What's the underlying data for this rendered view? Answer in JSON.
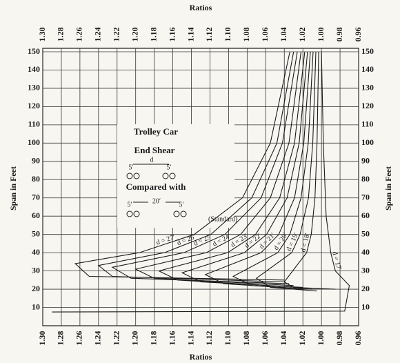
{
  "chart_data": {
    "type": "line",
    "x_label": "Ratios",
    "y_label": "Span in Feet",
    "annotations": [
      "Trolley Car",
      "End Shear",
      "Compared with",
      "(Standard)",
      "d",
      "5′",
      "5′",
      "5′",
      "20′",
      "5′"
    ],
    "color": "#1a1a1a",
    "grid": true,
    "xlim": [
      1.3,
      0.96
    ],
    "xticks": [
      {
        "value": 1.3,
        "label": "1.30"
      },
      1.28,
      1.26,
      1.24,
      1.22,
      {
        "value": 1.2,
        "label": "1.20"
      },
      1.18,
      1.16,
      1.14,
      1.12,
      {
        "value": 1.1,
        "label": "1.10"
      },
      1.08,
      1.06,
      1.04,
      1.02,
      {
        "value": 1.0,
        "label": "1.00"
      },
      0.98,
      0.96
    ],
    "ylim": [
      0,
      150
    ],
    "yticks": [
      10,
      20,
      30,
      40,
      50,
      60,
      70,
      80,
      90,
      100,
      110,
      120,
      130,
      140,
      150
    ],
    "series": [
      {
        "name": "d = 27′",
        "x": [
          1.034,
          1.055,
          1.085,
          1.137,
          1.196,
          1.265,
          1.25,
          1.04
        ],
        "values": [
          150,
          100,
          70,
          50,
          40,
          34,
          27,
          25
        ]
      },
      {
        "name": "d = 26′",
        "x": [
          1.03,
          1.048,
          1.075,
          1.119,
          1.169,
          1.24,
          1.225,
          1.04
        ],
        "values": [
          150,
          100,
          70,
          50,
          40,
          33,
          27,
          24
        ]
      },
      {
        "name": "d = 25′",
        "x": [
          1.026,
          1.042,
          1.065,
          1.104,
          1.148,
          1.225,
          1.205,
          1.035
        ],
        "values": [
          150,
          100,
          70,
          50,
          40,
          32,
          26,
          23
        ]
      },
      {
        "name": "d = 24′",
        "x": [
          1.022,
          1.035,
          1.055,
          1.087,
          1.124,
          1.2,
          1.18,
          1.03
        ],
        "values": [
          150,
          100,
          70,
          50,
          40,
          31,
          26,
          22
        ]
      },
      {
        "name": "d = 23′",
        "x": [
          1.018,
          1.029,
          1.045,
          1.071,
          1.101,
          1.175,
          1.155,
          1.025
        ],
        "values": [
          150,
          100,
          70,
          50,
          40,
          30,
          25,
          21
        ]
      },
      {
        "name": "d = 22′",
        "x": [
          1.015,
          1.024,
          1.037,
          1.059,
          1.083,
          1.15,
          1.13,
          1.02
        ],
        "values": [
          150,
          100,
          70,
          50,
          40,
          29,
          24,
          21
        ]
      },
      {
        "name": "d = 21′",
        "x": [
          1.012,
          1.019,
          1.029,
          1.046,
          1.065,
          1.125,
          1.105,
          1.015
        ],
        "values": [
          150,
          100,
          70,
          50,
          40,
          28,
          23,
          20
        ]
      },
      {
        "name": "d = 20′",
        "x": [
          1.009,
          1.0142,
          1.022,
          1.034,
          1.047,
          1.095,
          1.075,
          1.01
        ],
        "values": [
          150,
          100,
          70,
          50,
          40,
          27,
          22,
          20
        ]
      },
      {
        "name": "d = 19′",
        "x": [
          1.006,
          1.0094,
          1.014,
          1.023,
          1.032,
          1.07,
          1.055,
          1.005
        ],
        "values": [
          150,
          100,
          70,
          50,
          40,
          26,
          21,
          19
        ]
      },
      {
        "name": "d = 18′",
        "x": [
          1.003,
          1.0048,
          1.007,
          1.011,
          1.016,
          1.04,
          1.03,
          0.985
        ],
        "values": [
          150,
          100,
          70,
          50,
          40,
          24,
          21,
          20
        ]
      },
      {
        "name": "d = 17′",
        "x": [
          1.0,
          0.998,
          0.995,
          0.99,
          0.985,
          0.97,
          0.975,
          1.29
        ],
        "values": [
          150,
          100,
          60,
          40,
          30,
          22,
          8,
          7.5
        ]
      }
    ]
  }
}
